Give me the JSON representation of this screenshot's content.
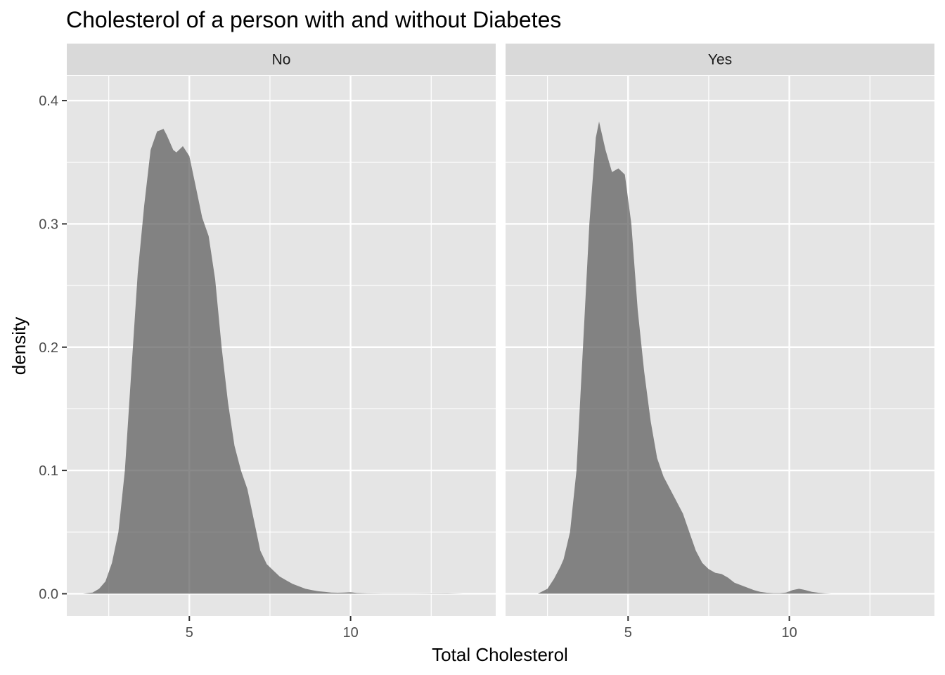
{
  "chart_data": {
    "type": "area",
    "title": "Cholesterol of a person with and without Diabetes",
    "xlabel": "Total Cholesterol",
    "ylabel": "density",
    "xlim": [
      1.2,
      14.5
    ],
    "ylim": [
      -0.018,
      0.42
    ],
    "x_ticks": [
      5,
      10
    ],
    "x_tick_labels": [
      "5",
      "10"
    ],
    "x_minor_ticks": [
      2.5,
      7.5,
      12.5
    ],
    "y_ticks": [
      0.0,
      0.1,
      0.2,
      0.3,
      0.4
    ],
    "y_tick_labels": [
      "0.0",
      "0.1",
      "0.2",
      "0.3",
      "0.4"
    ],
    "y_minor_ticks": [
      0.05,
      0.15,
      0.25,
      0.35
    ],
    "grid": true,
    "fill_color": "#595959",
    "fill_opacity": 0.7,
    "panel_background": "#e5e5e5",
    "strip_background": "#d9d9d9",
    "panels": [
      {
        "name": "No",
        "x": [
          1.7,
          2.0,
          2.2,
          2.4,
          2.6,
          2.8,
          3.0,
          3.2,
          3.4,
          3.6,
          3.8,
          4.0,
          4.2,
          4.3,
          4.5,
          4.6,
          4.8,
          5.0,
          5.2,
          5.4,
          5.6,
          5.8,
          6.0,
          6.2,
          6.4,
          6.6,
          6.8,
          7.0,
          7.2,
          7.4,
          7.6,
          7.8,
          8.0,
          8.2,
          8.4,
          8.6,
          8.8,
          9.0,
          9.2,
          9.4,
          9.6,
          9.8,
          10.0,
          10.2,
          10.5,
          11.0,
          12.0,
          13.0,
          13.5
        ],
        "y": [
          0.0,
          0.001,
          0.004,
          0.01,
          0.025,
          0.05,
          0.1,
          0.18,
          0.26,
          0.315,
          0.36,
          0.375,
          0.377,
          0.372,
          0.36,
          0.358,
          0.363,
          0.355,
          0.33,
          0.305,
          0.29,
          0.255,
          0.2,
          0.155,
          0.12,
          0.1,
          0.085,
          0.06,
          0.035,
          0.024,
          0.019,
          0.014,
          0.011,
          0.008,
          0.006,
          0.004,
          0.003,
          0.002,
          0.0015,
          0.001,
          0.0008,
          0.001,
          0.0012,
          0.0006,
          0.0003,
          0.0002,
          0.0002,
          0.0003,
          0.0
        ]
      },
      {
        "name": "Yes",
        "x": [
          2.2,
          2.5,
          2.7,
          2.9,
          3.0,
          3.2,
          3.4,
          3.6,
          3.8,
          4.0,
          4.1,
          4.3,
          4.5,
          4.7,
          4.9,
          5.1,
          5.3,
          5.5,
          5.7,
          5.9,
          6.1,
          6.3,
          6.5,
          6.7,
          6.9,
          7.1,
          7.3,
          7.5,
          7.7,
          7.9,
          8.1,
          8.3,
          8.5,
          8.7,
          8.9,
          9.1,
          9.3,
          9.5,
          9.7,
          9.9,
          10.1,
          10.3,
          10.5,
          10.7,
          10.9,
          11.1,
          11.3
        ],
        "y": [
          0.0,
          0.004,
          0.012,
          0.022,
          0.028,
          0.05,
          0.1,
          0.2,
          0.3,
          0.37,
          0.383,
          0.36,
          0.342,
          0.345,
          0.34,
          0.3,
          0.23,
          0.18,
          0.14,
          0.11,
          0.095,
          0.085,
          0.075,
          0.065,
          0.05,
          0.035,
          0.025,
          0.02,
          0.017,
          0.016,
          0.013,
          0.009,
          0.007,
          0.005,
          0.003,
          0.0015,
          0.0008,
          0.0005,
          0.0005,
          0.001,
          0.003,
          0.004,
          0.003,
          0.0015,
          0.0008,
          0.0003,
          0.0
        ]
      }
    ]
  }
}
